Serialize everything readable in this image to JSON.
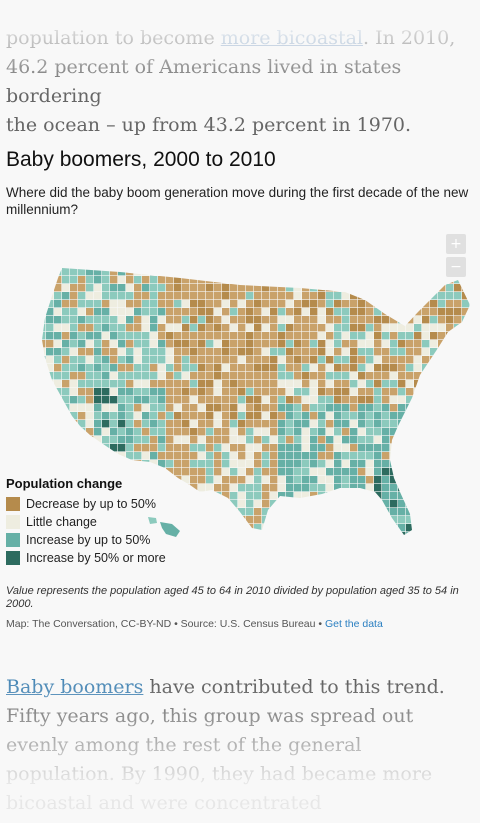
{
  "article": {
    "top_lines": [
      {
        "before": "population to become ",
        "link": "more bicoastal",
        "after": ". In 2010,"
      },
      {
        "before": "46.2 percent of Americans lived in states bordering",
        "link": "",
        "after": ""
      },
      {
        "before": "the ocean – up from 43.2 percent in 1970.",
        "link": "",
        "after": ""
      }
    ],
    "bottom": {
      "link": "Baby boomers",
      "text": " have contributed to this trend. Fifty years ago, this group was spread out evenly among the rest of the general population. By 1990, they had became more bicoastal and were concentrated"
    }
  },
  "widget": {
    "title": "Baby boomers, 2000 to 2010",
    "subtitle": "Where did the baby boom generation move during the first decade of the new millennium?",
    "zoom_in": "+",
    "zoom_out": "−",
    "legend": {
      "title": "Population change",
      "items": [
        {
          "label": "Decrease by up to 50%",
          "color": "#b58b4c"
        },
        {
          "label": "Little change",
          "color": "#eeede0"
        },
        {
          "label": "Increase by up to 50%",
          "color": "#66b0a6"
        },
        {
          "label": "Increase by 50% or more",
          "color": "#2d6b5f"
        }
      ]
    },
    "note": "Value represents the population aged 45 to 64 in 2010 divided by population aged 35 to 54 in 2000.",
    "source_text": "Map: The Conversation, CC-BY-ND • Source: U.S. Census Bureau • ",
    "source_link": "Get the data"
  },
  "map": {
    "colors": {
      "decrease": "#c9a26a",
      "decrease_dark": "#b58b4c",
      "little": "#eeede0",
      "increase": "#8ccabd",
      "increase_mid": "#66b0a6",
      "increase_strong": "#2d6b5f",
      "border": "#ffffff"
    }
  }
}
